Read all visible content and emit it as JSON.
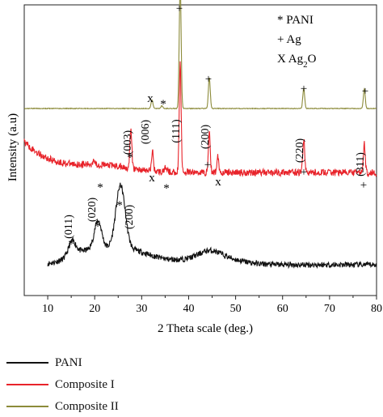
{
  "chart_data": {
    "type": "line",
    "xlabel": "2 Theta scale (deg.)",
    "ylabel": "Intensity (a.u)",
    "xlim": [
      5,
      80
    ],
    "xticks": [
      "10",
      "20",
      "30",
      "40",
      "50",
      "60",
      "70",
      "80"
    ],
    "yticks_shown": false,
    "grid": false,
    "series": [
      {
        "name": "PANI",
        "color": "#111111",
        "x_range": [
          10,
          80
        ],
        "peaks": [
          {
            "x": 15.2,
            "height": 0.05
          },
          {
            "x": 20.7,
            "height": 0.1
          },
          {
            "x": 25.5,
            "height": 0.22
          },
          {
            "x": 44.5,
            "height": 0.02
          }
        ]
      },
      {
        "name": "Composite I",
        "color": "#e8232a",
        "x_range": [
          5,
          80
        ],
        "peaks": [
          {
            "x": 19.8,
            "height": 0.02
          },
          {
            "x": 27.7,
            "height": 0.14
          },
          {
            "x": 32.3,
            "height": 0.07
          },
          {
            "x": 35.2,
            "height": 0.02
          },
          {
            "x": 38.2,
            "height": 0.38
          },
          {
            "x": 44.4,
            "height": 0.14
          },
          {
            "x": 46.2,
            "height": 0.06
          },
          {
            "x": 64.5,
            "height": 0.12
          },
          {
            "x": 77.4,
            "height": 0.1
          }
        ]
      },
      {
        "name": "Composite II",
        "color": "#8c8b3a",
        "x_range": [
          5,
          80
        ],
        "peaks": [
          {
            "x": 32.2,
            "height": 0.03
          },
          {
            "x": 34.3,
            "height": 0.01
          },
          {
            "x": 38.2,
            "height": 0.45
          },
          {
            "x": 44.4,
            "height": 0.11
          },
          {
            "x": 64.5,
            "height": 0.07
          },
          {
            "x": 77.4,
            "height": 0.07
          }
        ]
      }
    ],
    "annotations": [
      {
        "text": "+",
        "x": 38.2,
        "series": "Composite II"
      },
      {
        "text": "+",
        "x": 44.4,
        "series": "Composite II"
      },
      {
        "text": "+",
        "x": 64.5,
        "series": "Composite II"
      },
      {
        "text": "+",
        "x": 77.4,
        "series": "Composite II"
      },
      {
        "text": "x",
        "x": 32.2,
        "series": "Composite II"
      },
      {
        "text": "*",
        "x": 34.3,
        "series": "Composite II"
      },
      {
        "text": "*",
        "x": 21.0,
        "series": "Composite I"
      },
      {
        "text": "*",
        "x": 27.7,
        "series": "Composite I"
      },
      {
        "text": "(003)",
        "x": 27.7,
        "series": "Composite I",
        "rotated": true
      },
      {
        "text": "x",
        "x": 32.3,
        "series": "Composite I"
      },
      {
        "text": "(006)",
        "x": 32.3,
        "series": "Composite I",
        "rotated": true
      },
      {
        "text": "*",
        "x": 35.2,
        "series": "Composite I"
      },
      {
        "text": "(111)",
        "x": 38.2,
        "series": "Composite I",
        "rotated": true
      },
      {
        "text": "+",
        "x": 44.4,
        "series": "Composite I"
      },
      {
        "text": "(200)",
        "x": 44.4,
        "series": "Composite I",
        "rotated": true
      },
      {
        "text": "x",
        "x": 46.2,
        "series": "Composite I"
      },
      {
        "text": "+",
        "x": 64.5,
        "series": "Composite I"
      },
      {
        "text": "(220)",
        "x": 64.5,
        "series": "Composite I",
        "rotated": true
      },
      {
        "text": "+",
        "x": 77.4,
        "series": "Composite I"
      },
      {
        "text": "(311)",
        "x": 77.4,
        "series": "Composite I",
        "rotated": true
      },
      {
        "text": "*",
        "x": 15.2,
        "series": "PANI"
      },
      {
        "text": "(011)",
        "x": 15.2,
        "series": "PANI",
        "rotated": true
      },
      {
        "text": "*",
        "x": 20.7,
        "series": "PANI"
      },
      {
        "text": "(020)",
        "x": 20.7,
        "series": "PANI",
        "rotated": true
      },
      {
        "text": "*",
        "x": 25.5,
        "series": "PANI"
      },
      {
        "text": "(200)",
        "x": 25.5,
        "series": "PANI",
        "rotated": true
      }
    ],
    "key": [
      "* PANI",
      "+ Ag",
      "X Ag2O"
    ]
  },
  "legend": {
    "items": [
      {
        "label": "PANI",
        "color": "#111111"
      },
      {
        "label": "Composite I",
        "color": "#e8232a"
      },
      {
        "label": "Composite II",
        "color": "#8c8b3a"
      }
    ]
  }
}
